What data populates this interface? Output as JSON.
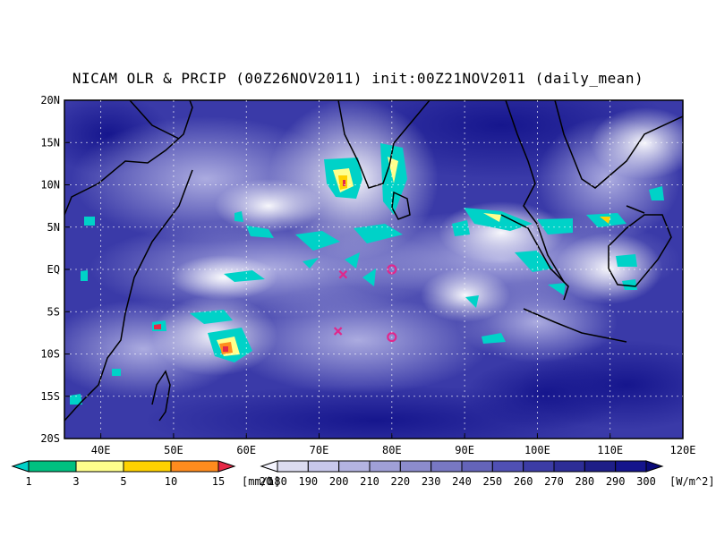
{
  "title": "NICAM OLR & PRCIP (00Z26NOV2011) init:00Z21NOV2011 (daily_mean)",
  "map": {
    "lon_range": [
      35,
      120
    ],
    "lat_range": [
      -20,
      20
    ],
    "lon_tick_labels": [
      "40E",
      "50E",
      "60E",
      "70E",
      "80E",
      "90E",
      "100E",
      "110E",
      "120E"
    ],
    "lat_tick_labels": [
      "20N",
      "15N",
      "10N",
      "5N",
      "EQ",
      "5S",
      "10S",
      "15S",
      "20S"
    ],
    "background_color": "#3a3aa8",
    "markers": [
      {
        "type": "x",
        "label": "",
        "lon": 73.3,
        "lat": -0.6,
        "color": "#e0288c"
      },
      {
        "type": "x",
        "label": "",
        "lon": 72.6,
        "lat": -7.3,
        "color": "#e0288c"
      },
      {
        "type": "circle",
        "label": "",
        "lon": 80.0,
        "lat": 0.0,
        "color": "#e0288c"
      },
      {
        "type": "circle",
        "label": "",
        "lon": 80.0,
        "lat": -8.0,
        "color": "#e0288c"
      }
    ]
  },
  "precip_colorbar": {
    "labels": [
      "1",
      "3",
      "5",
      "10",
      "15",
      "20"
    ],
    "unit": "[mm/h]",
    "colors": [
      "#00d2c8",
      "#00c080",
      "#ffff8c",
      "#ffd200",
      "#ff8c1e",
      "#e62846"
    ]
  },
  "olr_colorbar": {
    "labels": [
      "180",
      "190",
      "200",
      "210",
      "220",
      "230",
      "240",
      "250",
      "260",
      "270",
      "280",
      "290",
      "300"
    ],
    "unit": "[W/m^2]",
    "colors": [
      "#f5f5ff",
      "#dcdcf0",
      "#c8c8eb",
      "#b4b4e1",
      "#a0a0d7",
      "#8c8ccd",
      "#7878c3",
      "#6464b9",
      "#5050b4",
      "#3c3ca5",
      "#2d2d96",
      "#1e1e87",
      "#14148c",
      "#0a0a78"
    ]
  }
}
